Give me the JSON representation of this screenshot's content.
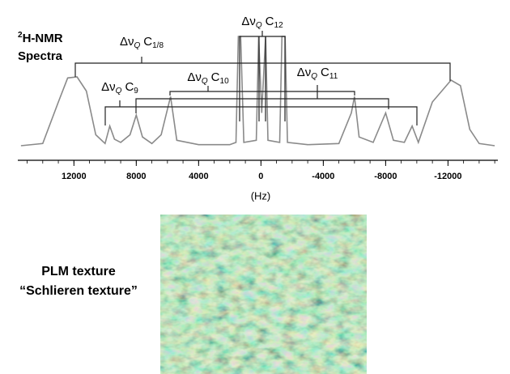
{
  "chart_data": {
    "type": "line",
    "title_superscript": "2",
    "title": "H-NMR",
    "title_line2": "Spectra",
    "xlabel": "(Hz)",
    "xlim": [
      15600,
      -15200
    ],
    "ylim": [
      0,
      100
    ],
    "xticks": [
      12000,
      8000,
      4000,
      0,
      -4000,
      -8000,
      -12000
    ],
    "color": "#8a8a8a",
    "x": [
      15400,
      14000,
      13000,
      12400,
      11800,
      11200,
      10600,
      10000,
      9700,
      9400,
      9000,
      8400,
      8000,
      7600,
      7000,
      6400,
      5800,
      5400,
      4000,
      2000,
      1600,
      1450,
      1300,
      1100,
      300,
      150,
      -50,
      -300,
      -450,
      -1200,
      -1350,
      -1550,
      -1700,
      -3000,
      -5000,
      -5800,
      -6000,
      -6300,
      -7200,
      -8000,
      -8500,
      -9200,
      -9700,
      -10100,
      -11000,
      -12200,
      -12800,
      -13400,
      -14000,
      -15000
    ],
    "values": [
      0,
      2,
      40,
      62,
      63,
      50,
      10,
      2,
      18,
      6,
      3,
      10,
      28,
      8,
      2,
      10,
      45,
      5,
      1,
      1,
      3,
      100,
      100,
      3,
      5,
      100,
      30,
      100,
      5,
      3,
      100,
      100,
      3,
      1,
      2,
      30,
      45,
      8,
      3,
      30,
      5,
      3,
      18,
      3,
      40,
      60,
      55,
      15,
      2,
      0
    ],
    "annotations": [
      {
        "base": "Δν",
        "base_sub": "Q",
        "label": "C",
        "label_sub": "1/8"
      },
      {
        "base": "Δν",
        "base_sub": "Q",
        "label": "C",
        "label_sub": "9"
      },
      {
        "base": "Δν",
        "base_sub": "Q",
        "label": "C",
        "label_sub": "10"
      },
      {
        "base": "Δν",
        "base_sub": "Q",
        "label": "C",
        "label_sub": "11"
      },
      {
        "base": "Δν",
        "base_sub": "Q",
        "label": "C",
        "label_sub": "12"
      }
    ]
  },
  "micrograph": {
    "caption_line1": "PLM texture",
    "caption_line2": "“Schlieren texture”"
  }
}
